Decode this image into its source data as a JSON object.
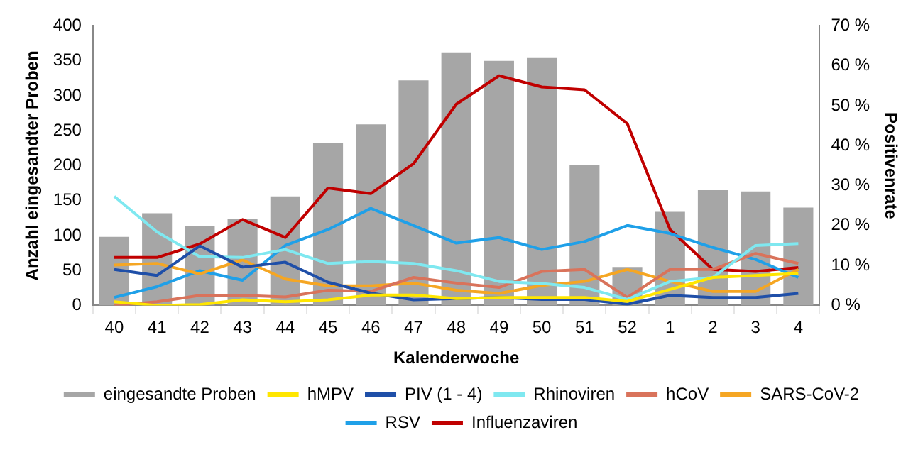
{
  "chart_data": {
    "type": "bar",
    "xlabel": "Kalenderwoche",
    "ylabel": "Anzahl eingesandter Proben",
    "y2label": "Positivenrate",
    "categories": [
      "40",
      "41",
      "42",
      "43",
      "44",
      "45",
      "46",
      "47",
      "48",
      "49",
      "50",
      "51",
      "52",
      "1",
      "2",
      "3",
      "4"
    ],
    "series": [
      {
        "name": "eingesandte Proben",
        "color": "#a6a6a6",
        "values": [
          98,
          132,
          114,
          124,
          156,
          233,
          259,
          322,
          362,
          350,
          354,
          201,
          55,
          134,
          165,
          163,
          140
        ]
      },
      {
        "name": "hMPV",
        "type": "line",
        "axis": "y2",
        "color": "#ffe600",
        "values": [
          0.9,
          0,
          0.2,
          1.4,
          0.9,
          1.4,
          2.6,
          2.6,
          1.7,
          2,
          2,
          2,
          1,
          4,
          7,
          7.5,
          8
        ]
      },
      {
        "name": "PIV (1 - 4)",
        "type": "line",
        "axis": "y2",
        "color": "#1f4fa8",
        "values": [
          9,
          7.5,
          14.9,
          9.6,
          10.8,
          5.8,
          3.1,
          1.4,
          1.7,
          2,
          1.5,
          1.5,
          0.3,
          2.5,
          2,
          2,
          3
        ]
      },
      {
        "name": "Rhinoviren",
        "type": "line",
        "axis": "y2",
        "color": "#7fe8f0",
        "values": [
          27.3,
          18.4,
          12.2,
          12,
          14,
          10.5,
          11,
          10.5,
          8.7,
          6,
          5.5,
          4.5,
          1.5,
          6,
          7,
          15,
          15.5
        ]
      },
      {
        "name": "hCoV",
        "type": "line",
        "axis": "y2",
        "color": "#d9735b",
        "values": [
          0,
          0.9,
          2.5,
          2.5,
          2.1,
          3.8,
          3.5,
          7,
          5.6,
          4.5,
          8.5,
          9,
          2,
          9,
          9,
          13,
          10.5
        ]
      },
      {
        "name": "SARS-CoV-2",
        "type": "line",
        "axis": "y2",
        "color": "#f5a623",
        "values": [
          10.1,
          10.5,
          7.9,
          11.4,
          6.6,
          4.9,
          4.9,
          5.6,
          3.8,
          3,
          5,
          6,
          9,
          6,
          3.5,
          3.5,
          9
        ]
      },
      {
        "name": "RSV",
        "type": "line",
        "axis": "y2",
        "color": "#1fa0e8",
        "values": [
          2,
          4.7,
          8.7,
          6.3,
          15,
          19,
          24.3,
          20,
          15.6,
          17,
          14,
          16,
          20,
          18,
          14.5,
          11.5,
          7
        ]
      },
      {
        "name": "Influenzaviren",
        "type": "line",
        "axis": "y2",
        "color": "#c00000",
        "values": [
          12,
          12,
          15.4,
          21.5,
          17,
          29.4,
          28,
          35.5,
          50.4,
          57.5,
          54.7,
          54,
          45.5,
          19,
          9,
          8.5,
          9.5
        ]
      }
    ],
    "ylim": [
      0,
      400
    ],
    "yticks": [
      0,
      50,
      100,
      150,
      200,
      250,
      300,
      350,
      400
    ],
    "y2lim": [
      0,
      70
    ],
    "y2ticks": [
      {
        "value": 0,
        "label": "0 %"
      },
      {
        "value": 10,
        "label": "10 %"
      },
      {
        "value": 20,
        "label": "20 %"
      },
      {
        "value": 30,
        "label": "30 %"
      },
      {
        "value": 40,
        "label": "40 %"
      },
      {
        "value": 50,
        "label": "50 %"
      },
      {
        "value": 60,
        "label": "60 %"
      },
      {
        "value": 70,
        "label": "70 %"
      }
    ],
    "grid": false,
    "legend": "bottom",
    "marker": "none",
    "line_style": "solid"
  }
}
